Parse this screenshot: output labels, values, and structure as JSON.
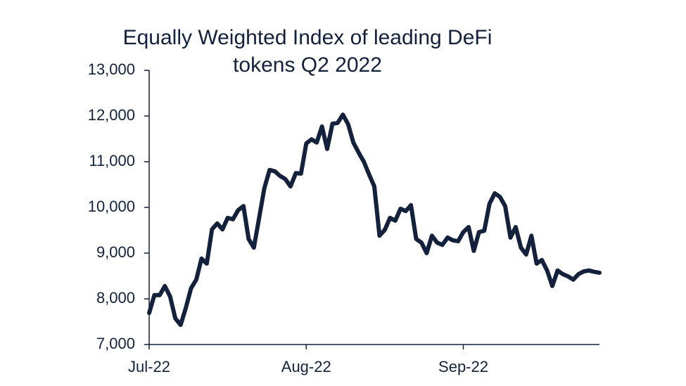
{
  "chart_data": {
    "type": "line",
    "title": "Equally Weighted Index of leading DeFi tokens Q2 2022",
    "categories": [
      "Jul-22",
      null,
      null,
      null,
      null,
      null,
      null,
      null,
      null,
      null,
      null,
      null,
      null,
      null,
      null,
      null,
      null,
      null,
      null,
      null,
      null,
      null,
      null,
      null,
      null,
      null,
      null,
      null,
      null,
      null,
      "Aug-22",
      null,
      null,
      null,
      null,
      null,
      null,
      null,
      null,
      null,
      null,
      null,
      null,
      null,
      null,
      null,
      null,
      null,
      null,
      null,
      null,
      null,
      null,
      null,
      null,
      null,
      null,
      null,
      null,
      null,
      "Sep-22",
      null,
      null,
      null,
      null,
      null,
      null,
      null,
      null,
      null,
      null,
      null,
      null,
      null,
      null,
      null,
      null,
      null,
      null,
      null,
      null,
      null,
      null,
      null,
      null,
      null,
      null
    ],
    "values": [
      7690,
      8080,
      8080,
      8280,
      8050,
      7570,
      7430,
      7800,
      8230,
      8420,
      8880,
      8770,
      9520,
      9650,
      9520,
      9770,
      9740,
      9940,
      10030,
      9310,
      9120,
      9770,
      10420,
      10820,
      10790,
      10690,
      10620,
      10460,
      10750,
      10740,
      11400,
      11490,
      11420,
      11770,
      11280,
      11830,
      11850,
      12030,
      11820,
      11420,
      11200,
      11000,
      10720,
      10460,
      9380,
      9510,
      9770,
      9710,
      9970,
      9920,
      10050,
      9310,
      9230,
      9000,
      9380,
      9230,
      9180,
      9340,
      9280,
      9260,
      9460,
      9570,
      9050,
      9460,
      9490,
      10080,
      10310,
      10230,
      10030,
      9340,
      9570,
      9120,
      8970,
      9380,
      8770,
      8850,
      8620,
      8280,
      8620,
      8540,
      8490,
      8420,
      8540,
      8600,
      8620,
      8590,
      8570
    ],
    "color": "#13213c",
    "ylim": [
      7000,
      13000
    ],
    "yticks": [
      {
        "value": 7000,
        "label": "7,000"
      },
      {
        "value": 8000,
        "label": "8,000"
      },
      {
        "value": 9000,
        "label": "9,000"
      },
      {
        "value": 10000,
        "label": "10,000"
      },
      {
        "value": 11000,
        "label": "11,000"
      },
      {
        "value": 12000,
        "label": "12,000"
      },
      {
        "value": 13000,
        "label": "13,000"
      }
    ]
  }
}
